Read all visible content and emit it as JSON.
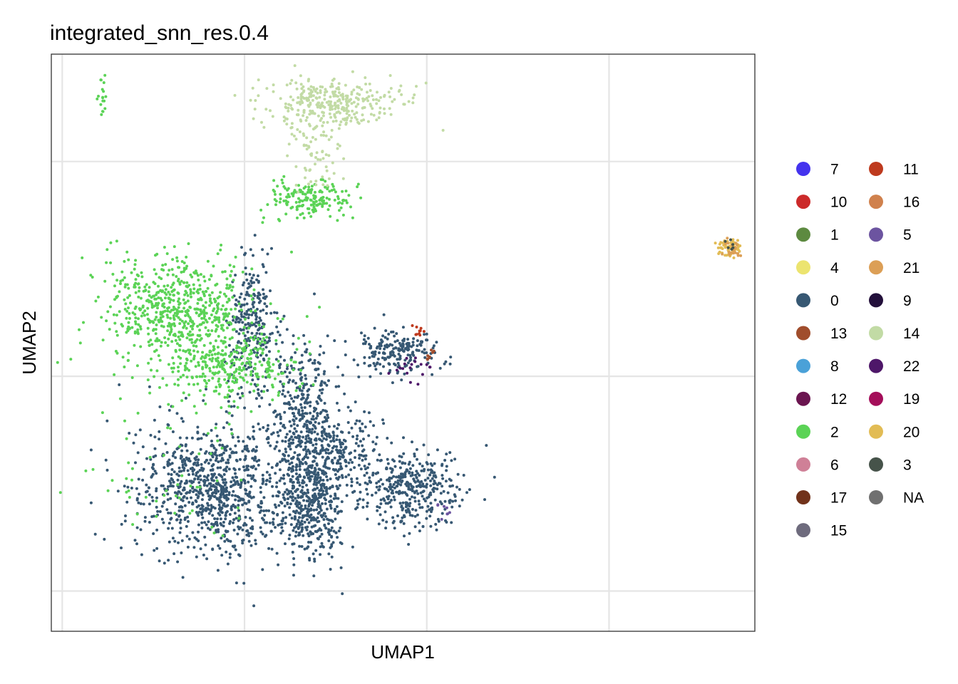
{
  "chart_data": {
    "type": "scatter",
    "title": "integrated_snn_res.0.4",
    "xlabel": "UMAP1",
    "ylabel": "UMAP2",
    "grid": true,
    "axis_ticks_shown": false,
    "legend_position": "right",
    "clusters": [
      {
        "name": "7",
        "color": "#4433ee"
      },
      {
        "name": "10",
        "color": "#cc2a2a"
      },
      {
        "name": "1",
        "color": "#5d8a40"
      },
      {
        "name": "4",
        "color": "#ece46f"
      },
      {
        "name": "0",
        "color": "#375873"
      },
      {
        "name": "13",
        "color": "#a04d2c"
      },
      {
        "name": "8",
        "color": "#4aa1d8"
      },
      {
        "name": "12",
        "color": "#6b1550"
      },
      {
        "name": "2",
        "color": "#5bd356"
      },
      {
        "name": "6",
        "color": "#cf8097"
      },
      {
        "name": "17",
        "color": "#71321a"
      },
      {
        "name": "15",
        "color": "#6e6b7d"
      },
      {
        "name": "11",
        "color": "#be3a1e"
      },
      {
        "name": "16",
        "color": "#d0814d"
      },
      {
        "name": "5",
        "color": "#6c54a0"
      },
      {
        "name": "21",
        "color": "#dc9f56"
      },
      {
        "name": "9",
        "color": "#23103b"
      },
      {
        "name": "14",
        "color": "#c2dba5"
      },
      {
        "name": "22",
        "color": "#4e1769"
      },
      {
        "name": "19",
        "color": "#a40e5a"
      },
      {
        "name": "20",
        "color": "#e2bc55"
      },
      {
        "name": "3",
        "color": "#46534a"
      },
      {
        "name": "NA",
        "color": "#707070"
      }
    ],
    "legend_columns": [
      [
        "7",
        "10",
        "1",
        "4",
        "0",
        "13",
        "8",
        "12",
        "2",
        "6",
        "17",
        "15"
      ],
      [
        "11",
        "16",
        "5",
        "21",
        "9",
        "14",
        "22",
        "19",
        "20",
        "3",
        "NA"
      ]
    ],
    "point_groups": [
      {
        "cluster": "0",
        "x": 4.2,
        "y": -4.2,
        "sx": 1.5,
        "sy": 1.6,
        "n": 900
      },
      {
        "cluster": "0",
        "x": 6.8,
        "y": -4.6,
        "sx": 0.6,
        "sy": 1.4,
        "n": 480
      },
      {
        "cluster": "0",
        "x": 6.6,
        "y": -0.8,
        "sx": 0.6,
        "sy": 1.5,
        "n": 260
      },
      {
        "cluster": "0",
        "x": 5.2,
        "y": 2.0,
        "sx": 0.45,
        "sy": 1.7,
        "n": 260
      },
      {
        "cluster": "0",
        "x": 9.5,
        "y": -4.1,
        "sx": 0.9,
        "sy": 1.0,
        "n": 380
      },
      {
        "cluster": "0",
        "x": 9.2,
        "y": 0.9,
        "sx": 0.8,
        "sy": 0.55,
        "n": 200
      },
      {
        "cluster": "0",
        "x": 7.3,
        "y": -2.6,
        "sx": 1.0,
        "sy": 0.9,
        "n": 250
      },
      {
        "cluster": "2",
        "x": 3.2,
        "y": 2.5,
        "sx": 1.4,
        "sy": 1.4,
        "n": 650
      },
      {
        "cluster": "2",
        "x": 4.6,
        "y": 0.3,
        "sx": 1.1,
        "sy": 0.8,
        "n": 280
      },
      {
        "cluster": "2",
        "x": 6.8,
        "y": 6.6,
        "sx": 0.8,
        "sy": 0.45,
        "n": 170
      },
      {
        "cluster": "2",
        "x": 1.1,
        "y": 10.5,
        "sx": 0.06,
        "sy": 0.4,
        "n": 18
      },
      {
        "cluster": "2",
        "x": 3.0,
        "y": -3.5,
        "sx": 1.4,
        "sy": 2.0,
        "n": 60
      },
      {
        "cluster": "14",
        "x": 7.4,
        "y": 10.2,
        "sx": 1.3,
        "sy": 0.6,
        "n": 320
      },
      {
        "cluster": "14",
        "x": 6.9,
        "y": 8.3,
        "sx": 0.5,
        "sy": 0.9,
        "n": 70
      },
      {
        "cluster": "20",
        "x": 18.3,
        "y": 4.8,
        "sx": 0.22,
        "sy": 0.22,
        "n": 60
      },
      {
        "cluster": "21",
        "x": 18.4,
        "y": 4.7,
        "sx": 0.2,
        "sy": 0.2,
        "n": 20
      },
      {
        "cluster": "11",
        "x": 9.8,
        "y": 1.7,
        "sx": 0.15,
        "sy": 0.15,
        "n": 10
      },
      {
        "cluster": "13",
        "x": 10.1,
        "y": 0.8,
        "sx": 0.15,
        "sy": 0.2,
        "n": 8
      },
      {
        "cluster": "22",
        "x": 9.7,
        "y": 0.3,
        "sx": 0.4,
        "sy": 0.4,
        "n": 18
      },
      {
        "cluster": "5",
        "x": 10.4,
        "y": -5.0,
        "sx": 0.2,
        "sy": 0.2,
        "n": 8
      },
      {
        "cluster": "3",
        "x": 18.3,
        "y": 4.8,
        "sx": 0.15,
        "sy": 0.15,
        "n": 6
      }
    ],
    "xlim": [
      -0.3,
      19.0
    ],
    "ylim": [
      -9.5,
      12.0
    ],
    "gridlines_x": [
      0,
      5,
      10,
      15
    ],
    "gridlines_y": [
      -8,
      0,
      8
    ]
  }
}
